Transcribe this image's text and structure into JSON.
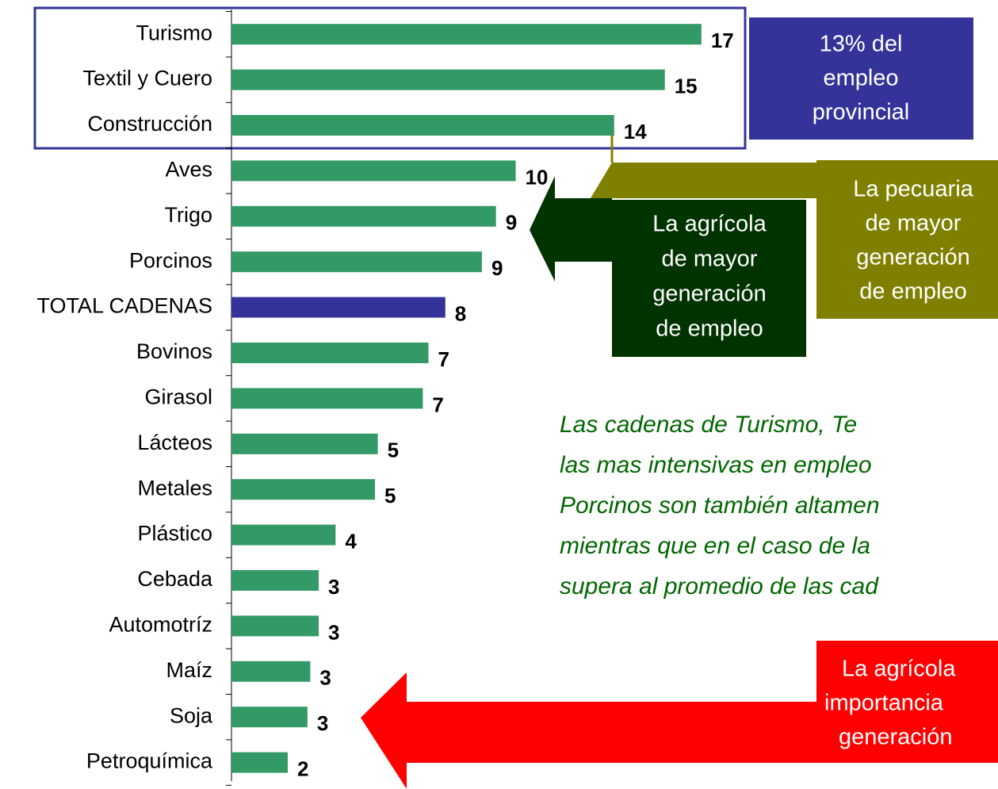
{
  "chart_data": {
    "type": "bar",
    "orientation": "horizontal",
    "categories": [
      "Turismo",
      "Textil y Cuero",
      "Construcción",
      "Aves",
      "Trigo",
      "Porcinos",
      "TOTAL CADENAS",
      "Bovinos",
      "Girasol",
      "Lácteos",
      "Metales",
      "Plástico",
      "Cebada",
      "Automotríz",
      "Maíz",
      "Soja",
      "Petroquímica"
    ],
    "values": [
      16.7,
      15.4,
      13.6,
      10.1,
      9.4,
      8.9,
      7.6,
      7.0,
      6.8,
      5.2,
      5.1,
      3.7,
      3.1,
      3.1,
      2.8,
      2.7,
      2.0
    ],
    "value_labels": [
      "17",
      "15",
      "14",
      "10",
      "9",
      "9",
      "8",
      "7",
      "7",
      "5",
      "5",
      "4",
      "3",
      "3",
      "3",
      "3",
      "2"
    ],
    "colors": [
      "#339966",
      "#339966",
      "#339966",
      "#339966",
      "#339966",
      "#339966",
      "#333399",
      "#339966",
      "#339966",
      "#339966",
      "#339966",
      "#339966",
      "#339966",
      "#339966",
      "#339966",
      "#339966",
      "#339966"
    ],
    "xlim": [
      0,
      20
    ]
  },
  "annotations": {
    "provincial": {
      "lines": [
        "13% del",
        "empleo",
        "provincial"
      ],
      "color": "#333399"
    },
    "pecuaria": {
      "lines": [
        "La pecuaria",
        "de mayor",
        "generación",
        "de empleo"
      ],
      "color": "#808000"
    },
    "agricola": {
      "lines": [
        "La agrícola",
        "de mayor",
        "generación",
        "de empleo"
      ],
      "color": "#003300"
    },
    "paragraph": {
      "lines": [
        "Las cadenas de Turismo, Te",
        "las mas intensivas en empleo",
        "Porcinos son también altamen",
        "mientras que en el caso de la",
        "supera al promedio de las cad"
      ],
      "color": "#006600"
    },
    "agricola_low": {
      "lines": [
        "La agrícola",
        "importancia",
        "generación"
      ],
      "color": "#ff0000"
    }
  }
}
